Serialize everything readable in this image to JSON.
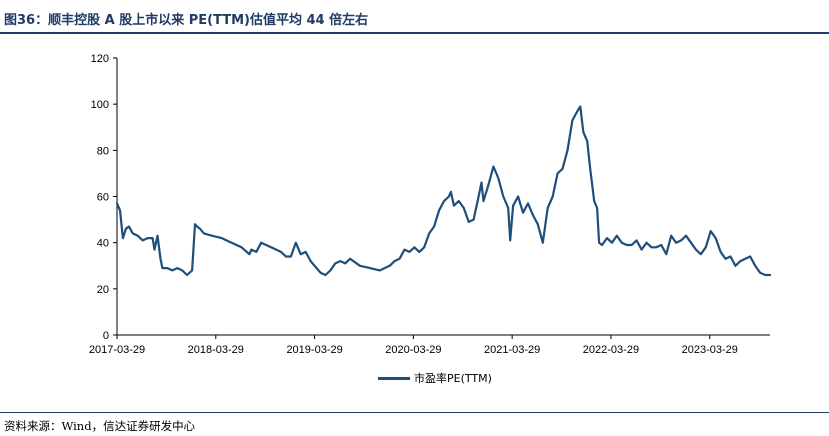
{
  "header": {
    "title": "图36：顺丰控股 A 股上市以来 PE(TTM)估值平均 44 倍左右"
  },
  "footer": {
    "source": "资料来源：Wind，信达证券研发中心"
  },
  "chart_data": {
    "type": "line",
    "title": "图36：顺丰控股 A 股上市以来 PE(TTM)估值平均 44 倍左右",
    "xlabel": "",
    "ylabel": "",
    "ylim": [
      0,
      120
    ],
    "yticks": [
      0,
      20,
      40,
      60,
      80,
      100,
      120
    ],
    "xlim": [
      2017.24,
      2023.85
    ],
    "x_tick_labels": [
      "2017-03-29",
      "2018-03-29",
      "2019-03-29",
      "2020-03-29",
      "2021-03-29",
      "2022-03-29",
      "2023-03-29"
    ],
    "x_tick_positions": [
      2017.24,
      2018.24,
      2019.24,
      2020.24,
      2021.24,
      2022.24,
      2023.24
    ],
    "legend_position": "bottom",
    "series": [
      {
        "name": "市盈率PE(TTM)",
        "color": "#1f4e79",
        "x": [
          2017.24,
          2017.27,
          2017.3,
          2017.33,
          2017.36,
          2017.4,
          2017.45,
          2017.5,
          2017.55,
          2017.6,
          2017.62,
          2017.65,
          2017.68,
          2017.7,
          2017.75,
          2017.8,
          2017.85,
          2017.9,
          2017.95,
          2018.0,
          2018.03,
          2018.05,
          2018.08,
          2018.12,
          2018.2,
          2018.3,
          2018.4,
          2018.5,
          2018.58,
          2018.6,
          2018.65,
          2018.7,
          2018.8,
          2018.9,
          2018.95,
          2019.0,
          2019.05,
          2019.1,
          2019.15,
          2019.2,
          2019.24,
          2019.3,
          2019.35,
          2019.4,
          2019.45,
          2019.5,
          2019.55,
          2019.6,
          2019.7,
          2019.8,
          2019.9,
          2020.0,
          2020.05,
          2020.1,
          2020.15,
          2020.2,
          2020.25,
          2020.3,
          2020.35,
          2020.4,
          2020.45,
          2020.5,
          2020.55,
          2020.6,
          2020.62,
          2020.65,
          2020.7,
          2020.75,
          2020.8,
          2020.85,
          2020.9,
          2020.93,
          2020.95,
          2021.0,
          2021.05,
          2021.1,
          2021.15,
          2021.2,
          2021.22,
          2021.25,
          2021.3,
          2021.35,
          2021.4,
          2021.45,
          2021.5,
          2021.55,
          2021.6,
          2021.65,
          2021.7,
          2021.75,
          2021.8,
          2021.85,
          2021.9,
          2021.93,
          2021.96,
          2022.0,
          2022.03,
          2022.07,
          2022.1,
          2022.12,
          2022.15,
          2022.2,
          2022.25,
          2022.3,
          2022.35,
          2022.4,
          2022.45,
          2022.5,
          2022.55,
          2022.6,
          2022.65,
          2022.7,
          2022.75,
          2022.8,
          2022.85,
          2022.9,
          2022.95,
          2023.0,
          2023.05,
          2023.1,
          2023.15,
          2023.2,
          2023.25,
          2023.3,
          2023.35,
          2023.4,
          2023.45,
          2023.5,
          2023.55,
          2023.6,
          2023.65,
          2023.7,
          2023.75,
          2023.8,
          2023.85
        ],
        "values": [
          57,
          54,
          42,
          46,
          47,
          44,
          43,
          41,
          42,
          42,
          37,
          43,
          33,
          29,
          29,
          28,
          29,
          28,
          26,
          28,
          48,
          47,
          46,
          44,
          43,
          42,
          40,
          38,
          35,
          37,
          36,
          40,
          38,
          36,
          34,
          34,
          40,
          35,
          36,
          32,
          30,
          27,
          26,
          28,
          31,
          32,
          31,
          33,
          30,
          29,
          28,
          30,
          32,
          33,
          37,
          36,
          38,
          36,
          38,
          44,
          47,
          54,
          58,
          60,
          62,
          56,
          58,
          55,
          49,
          50,
          60,
          66,
          58,
          65,
          73,
          68,
          60,
          55,
          41,
          56,
          60,
          53,
          57,
          52,
          48,
          40,
          55,
          60,
          70,
          72,
          80,
          93,
          97,
          99,
          88,
          84,
          72,
          58,
          55,
          40,
          39,
          42,
          40,
          43,
          40,
          39,
          39,
          41,
          37,
          40,
          38,
          38,
          39,
          35,
          43,
          40,
          41,
          43,
          40,
          37,
          35,
          38,
          45,
          42,
          36,
          33,
          34,
          30,
          32,
          33,
          34,
          30,
          27,
          26,
          26
        ]
      }
    ]
  }
}
